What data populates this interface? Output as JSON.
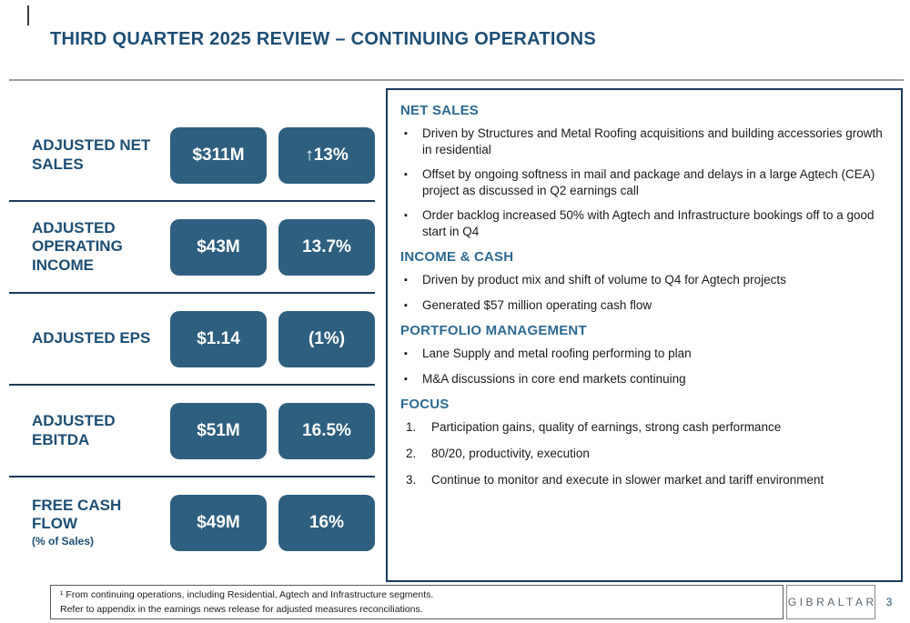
{
  "slide": {
    "title": "THIRD QUARTER 2025 REVIEW – CONTINUING OPERATIONS",
    "page_number": "3",
    "logo": "GIBRALTAR",
    "footnote_line1": "¹ From continuing operations, including Residential, Agtech and Infrastructure segments.",
    "footnote_line2": "Refer to appendix in the earnings news release for adjusted measures reconciliations."
  },
  "colors": {
    "title_blue": "#1d4e74",
    "pill_blue": "#2e5f7f",
    "heading_blue": "#2d6a93",
    "divider_navy": "#1b3a5c"
  },
  "metrics": [
    {
      "label": "ADJUSTED NET SALES",
      "value": "$311M",
      "change": "↑13%"
    },
    {
      "label": "ADJUSTED OPERATING INCOME",
      "value": "$43M",
      "change": "13.7%"
    },
    {
      "label": "ADJUSTED EPS",
      "value": "$1.14",
      "change": "(1%)"
    },
    {
      "label": "ADJUSTED EBITDA",
      "value": "$51M",
      "change": "16.5%"
    },
    {
      "label": "FREE CASH FLOW",
      "sublabel": "(% of Sales)",
      "value": "$49M",
      "change": "16%"
    }
  ],
  "right_panel": {
    "sections": [
      {
        "heading": "NET SALES",
        "items": [
          "Driven by Structures and Metal Roofing acquisitions and building accessories growth in residential",
          "Offset by ongoing softness in mail and package and delays in a large Agtech (CEA) project as discussed in Q2 earnings call",
          "Order backlog increased 50% with Agtech and Infrastructure bookings off to a good start in Q4"
        ]
      },
      {
        "heading": "INCOME & CASH",
        "items": [
          "Driven by product mix and shift of volume to Q4 for Agtech projects",
          "Generated $57 million operating cash flow"
        ]
      },
      {
        "heading": "PORTFOLIO MANAGEMENT",
        "items": [
          "Lane Supply and metal roofing performing to plan",
          "M&A discussions in core end markets continuing"
        ]
      },
      {
        "heading": "FOCUS",
        "numbered": [
          {
            "num": "1.",
            "text": "Participation gains, quality of earnings, strong cash performance"
          },
          {
            "num": "2.",
            "text": "80/20, productivity, execution"
          },
          {
            "num": "3.",
            "text": "Continue to monitor and execute in slower market and tariff environment"
          }
        ]
      }
    ]
  }
}
